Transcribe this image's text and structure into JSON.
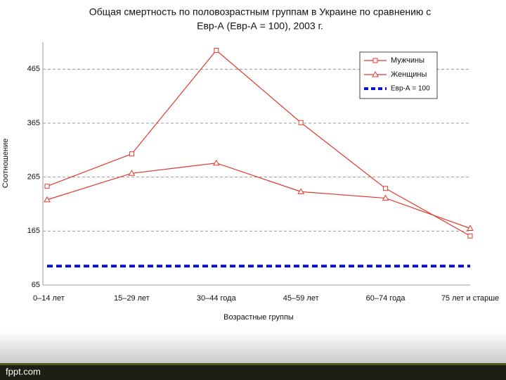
{
  "chart_data": {
    "type": "line",
    "title": [
      "Общая смертность по половозрастным группам в Украине по сравнению с",
      "Евр-А (Евр-А = 100), 2003 г."
    ],
    "xlabel": "Возрастные группы",
    "ylabel": "Соотношение",
    "categories": [
      "0–14 лет",
      "15–29 лет",
      "30–44 года",
      "45–59 лет",
      "60–74 года",
      "75 лет и старше"
    ],
    "series": [
      {
        "name": "Мужчины",
        "color": "#e03a2e",
        "marker": "square",
        "style": "solid",
        "values": [
          248,
          308,
          500,
          366,
          244,
          156
        ]
      },
      {
        "name": "Женщины",
        "color": "#e03a2e",
        "marker": "triangle",
        "style": "solid",
        "values": [
          223,
          272,
          291,
          238,
          226,
          170
        ]
      },
      {
        "name": "Евр-А = 100",
        "color": "#0a14c8",
        "marker": "none",
        "style": "dashed",
        "values": [
          100,
          100,
          100,
          100,
          100,
          100
        ]
      }
    ],
    "ylim": [
      65,
      515
    ],
    "yticks": [
      65,
      165,
      265,
      365,
      465
    ],
    "grid": true,
    "legend": "upper right"
  },
  "footer": "fppt.com"
}
